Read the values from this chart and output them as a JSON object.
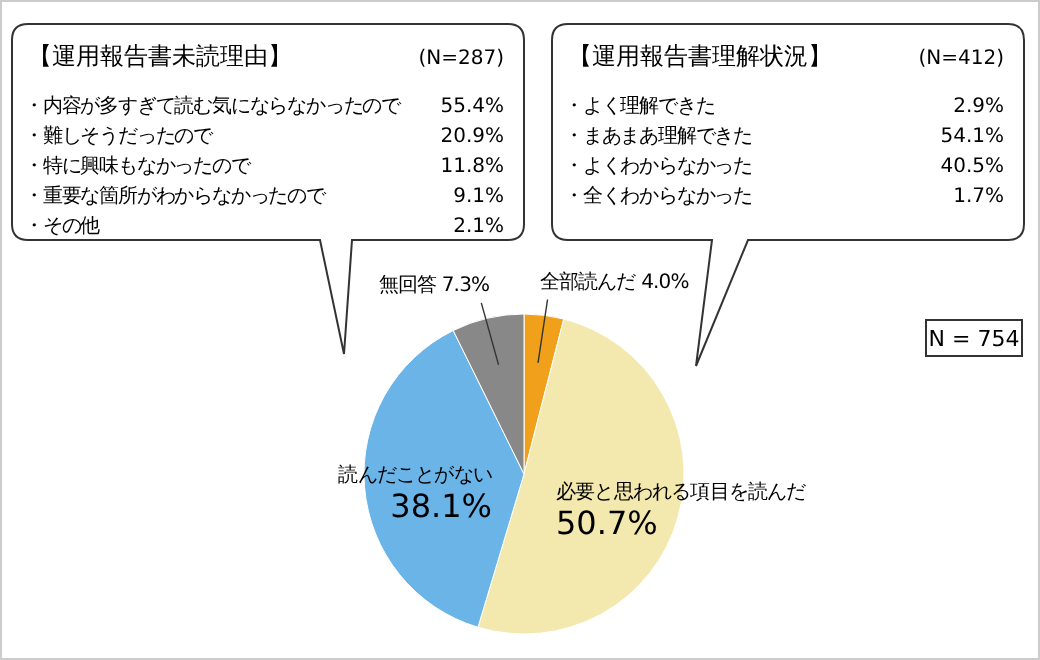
{
  "chart_data": {
    "type": "pie",
    "categories": [
      "全部読んだ",
      "必要と思われる項目を読んだ",
      "読んだことがない",
      "無回答"
    ],
    "values": [
      4.0,
      50.7,
      38.1,
      7.3
    ],
    "colors": [
      "#f0a01a",
      "#f3e9ae",
      "#6ab4e8",
      "#888888"
    ],
    "value_labels": [
      "4.0%",
      "50.7%",
      "38.1%",
      "7.3%"
    ],
    "annotations": [
      "【運用報告書未読理由】",
      "(N=287)",
      "・内容が多すぎて読む気にならなかったので",
      "55.4%",
      "・難しそうだったので",
      "20.9%",
      "・特に興味もなかったので",
      "11.8%",
      "・重要な箇所がわからなかったので",
      "9.1%",
      "・その他",
      "2.1%",
      "【運用報告書理解状況】",
      "(N=412)",
      "・よく理解できた",
      "2.9%",
      "・まあまあ理解できた",
      "54.1%",
      "・よくわからなかった",
      "40.5%",
      "・全くわからなかった",
      "1.7%",
      "N = 754"
    ]
  }
}
